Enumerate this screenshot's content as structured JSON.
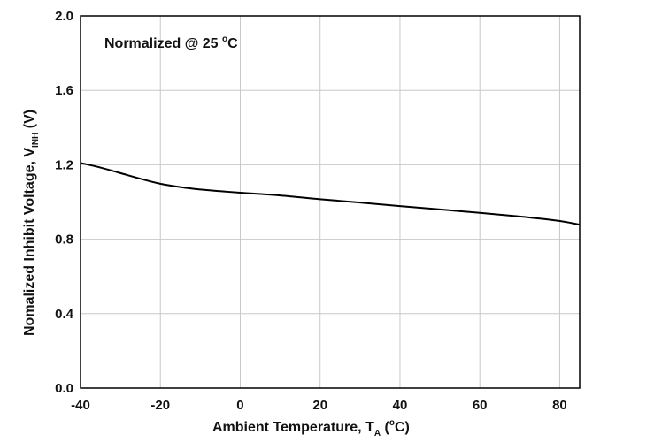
{
  "chart_data": {
    "type": "line",
    "title": "",
    "annotation": {
      "prefix": "Normalized @ 25 ",
      "sup": "o",
      "suffix": "C"
    },
    "xlabel": {
      "prefix": "Ambient Temperature, T",
      "sub": "A",
      "mid": " (",
      "sup": "o",
      "suffix": "C)"
    },
    "ylabel": {
      "prefix": "Nomalized Inhibit Voltage, V",
      "sub": "INH",
      "suffix": " (V)"
    },
    "xlim": [
      -40,
      85
    ],
    "ylim": [
      0,
      2.0
    ],
    "xticks": [
      -40,
      -20,
      0,
      20,
      40,
      60,
      80
    ],
    "xtick_labels": [
      "-40",
      "-20",
      "0",
      "20",
      "40",
      "60",
      "80"
    ],
    "yticks": [
      0,
      0.4,
      0.8,
      1.2,
      1.6,
      2.0
    ],
    "ytick_labels": [
      "0.0",
      "0.4",
      "0.8",
      "1.2",
      "1.6",
      "2.0"
    ],
    "grid": true,
    "series": [
      {
        "x": [
          -40,
          -35,
          -30,
          -25,
          -20,
          -15,
          -10,
          -5,
          0,
          10,
          20,
          30,
          40,
          50,
          60,
          70,
          80,
          85
        ],
        "y": [
          1.21,
          1.185,
          1.155,
          1.125,
          1.098,
          1.08,
          1.067,
          1.058,
          1.05,
          1.035,
          1.015,
          0.997,
          0.978,
          0.96,
          0.942,
          0.922,
          0.898,
          0.878
        ],
        "color": "#000000"
      }
    ]
  }
}
